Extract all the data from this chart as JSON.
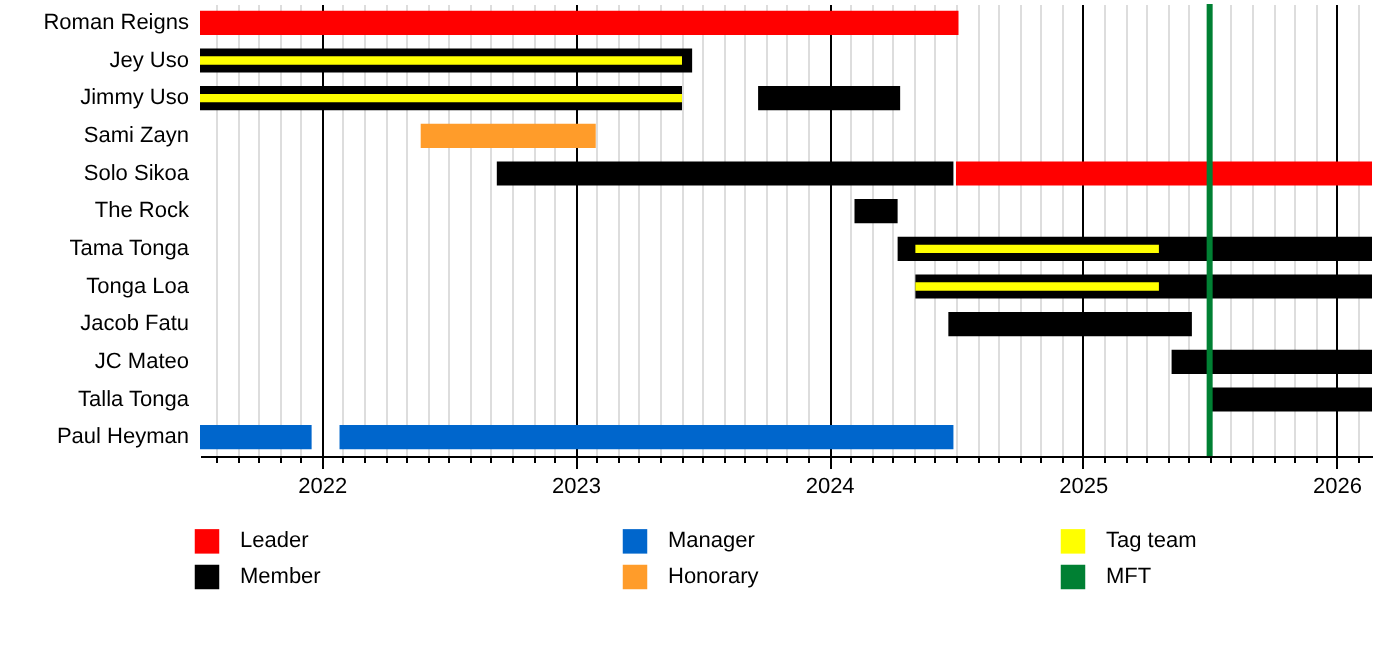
{
  "chart_data": {
    "type": "bar",
    "orientation": "horizontal",
    "categories": [
      "Roman Reigns",
      "Jey Uso",
      "Jimmy Uso",
      "Sami Zayn",
      "Solo Sikoa",
      "The Rock",
      "Tama Tonga",
      "Tonga Loa",
      "Jacob Fatu",
      "JC Mateo",
      "Talla Tonga",
      "Paul Heyman"
    ],
    "series": [
      {
        "name": "Leader",
        "color": "#ff0000",
        "base": [
          2021.52,
          null,
          null,
          null,
          2024.5,
          null,
          null,
          null,
          null,
          null,
          null,
          null
        ],
        "values": [
          2.99,
          null,
          null,
          null,
          1.64,
          null,
          null,
          null,
          null,
          null,
          null,
          null
        ]
      },
      {
        "name": "Member",
        "color": "#000000",
        "base": [
          null,
          2021.52,
          2021.52,
          null,
          2022.69,
          2024.1,
          2024.27,
          2024.34,
          2024.47,
          2025.35,
          2025.49,
          null
        ],
        "values": [
          null,
          1.94,
          1.9,
          null,
          1.8,
          0.17,
          1.87,
          1.8,
          0.96,
          0.79,
          0.65,
          null
        ]
      },
      {
        "color": "#000000",
        "base": [
          null,
          null,
          2023.72,
          null,
          null,
          null,
          null,
          null,
          null,
          null,
          null,
          null
        ],
        "values": [
          null,
          null,
          0.56,
          null,
          null,
          null,
          null,
          null,
          null,
          null,
          null,
          null
        ]
      },
      {
        "name": "Manager",
        "color": "#0066cc",
        "base": [
          null,
          null,
          null,
          null,
          null,
          null,
          null,
          null,
          null,
          null,
          null,
          2021.52
        ],
        "values": [
          null,
          null,
          null,
          null,
          null,
          null,
          null,
          null,
          null,
          null,
          null,
          0.44
        ]
      },
      {
        "color": "#0066cc",
        "base": [
          null,
          null,
          null,
          null,
          null,
          null,
          null,
          null,
          null,
          null,
          null,
          2022.07
        ],
        "values": [
          null,
          null,
          null,
          null,
          null,
          null,
          null,
          null,
          null,
          null,
          null,
          2.42
        ]
      },
      {
        "name": "Honorary",
        "color": "#ff9c2a",
        "base": [
          null,
          null,
          null,
          2022.39,
          null,
          null,
          null,
          null,
          null,
          null,
          null,
          null
        ],
        "values": [
          null,
          null,
          null,
          0.69,
          null,
          null,
          null,
          null,
          null,
          null,
          null,
          null
        ]
      },
      {
        "name": "Tag team",
        "color": "#ffff00",
        "base": [
          null,
          2021.52,
          2021.52,
          null,
          null,
          null,
          2024.34,
          2024.34,
          null,
          null,
          null,
          null
        ],
        "values": [
          null,
          1.9,
          1.9,
          null,
          null,
          null,
          0.96,
          0.96,
          null,
          null,
          null,
          null
        ]
      }
    ],
    "ref_lines": [
      {
        "axis": "x",
        "value": 2025.5,
        "label": "MFT",
        "color": "#008033"
      }
    ],
    "xlim": [
      2021.52,
      2026.14
    ],
    "xticks": [
      {
        "value": 2021.583,
        "label": null
      },
      {
        "value": 2021.667,
        "label": null
      },
      {
        "value": 2021.75,
        "label": null
      },
      {
        "value": 2021.833,
        "label": null
      },
      {
        "value": 2021.917,
        "label": null
      },
      2022,
      {
        "value": 2022.083,
        "label": null
      },
      {
        "value": 2022.167,
        "label": null
      },
      {
        "value": 2022.25,
        "label": null
      },
      {
        "value": 2022.333,
        "label": null
      },
      {
        "value": 2022.417,
        "label": null
      },
      {
        "value": 2022.5,
        "label": null
      },
      {
        "value": 2022.583,
        "label": null
      },
      {
        "value": 2022.667,
        "label": null
      },
      {
        "value": 2022.75,
        "label": null
      },
      {
        "value": 2022.833,
        "label": null
      },
      {
        "value": 2022.917,
        "label": null
      },
      2023,
      {
        "value": 2023.083,
        "label": null
      },
      {
        "value": 2023.167,
        "label": null
      },
      {
        "value": 2023.25,
        "label": null
      },
      {
        "value": 2023.333,
        "label": null
      },
      {
        "value": 2023.417,
        "label": null
      },
      {
        "value": 2023.5,
        "label": null
      },
      {
        "value": 2023.583,
        "label": null
      },
      {
        "value": 2023.667,
        "label": null
      },
      {
        "value": 2023.75,
        "label": null
      },
      {
        "value": 2023.833,
        "label": null
      },
      {
        "value": 2023.917,
        "label": null
      },
      2024,
      {
        "value": 2024.083,
        "label": null
      },
      {
        "value": 2024.167,
        "label": null
      },
      {
        "value": 2024.25,
        "label": null
      },
      {
        "value": 2024.333,
        "label": null
      },
      {
        "value": 2024.417,
        "label": null
      },
      {
        "value": 2024.5,
        "label": null
      },
      {
        "value": 2024.583,
        "label": null
      },
      {
        "value": 2024.667,
        "label": null
      },
      {
        "value": 2024.75,
        "label": null
      },
      {
        "value": 2024.833,
        "label": null
      },
      {
        "value": 2024.917,
        "label": null
      },
      2025,
      {
        "value": 2025.083,
        "label": null
      },
      {
        "value": 2025.167,
        "label": null
      },
      {
        "value": 2025.25,
        "label": null
      },
      {
        "value": 2025.333,
        "label": null
      },
      {
        "value": 2025.417,
        "label": null
      },
      {
        "value": 2025.5,
        "label": null
      },
      {
        "value": 2025.583,
        "label": null
      },
      {
        "value": 2025.667,
        "label": null
      },
      {
        "value": 2025.75,
        "label": null
      },
      {
        "value": 2025.833,
        "label": null
      },
      {
        "value": 2025.917,
        "label": null
      },
      2026,
      {
        "value": 2026.083,
        "label": null
      }
    ],
    "grid": true,
    "legend": "bottom"
  }
}
